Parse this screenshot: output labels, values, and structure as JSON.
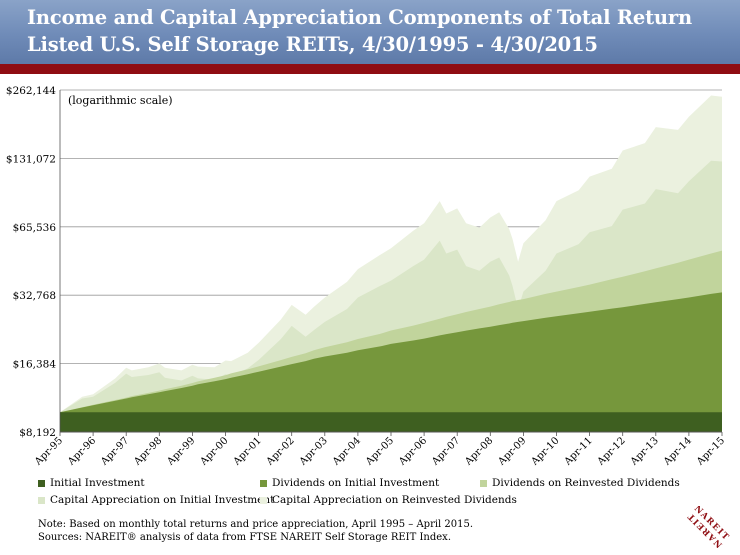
{
  "header": {
    "title_line1": "Income and Capital Appreciation Components of Total Return",
    "title_line2": "Listed U.S. Self Storage REITs, 4/30/1995 - 4/30/2015"
  },
  "colors": {
    "title_band": "#6f8bb8",
    "accent_bar": "#8f0d12",
    "initial_investment": "#3e5f20",
    "dividends_initial": "#76973c",
    "dividends_reinvested": "#c1d49c",
    "capital_initial": "#dae6c8",
    "capital_reinvested": "#ebf1df"
  },
  "chart_data": {
    "type": "area",
    "stacked": true,
    "y_scale": "log2",
    "annotation": "(logarithmic scale)",
    "ylim": [
      8192,
      262144
    ],
    "y_ticks": [
      8192,
      16384,
      32768,
      65536,
      131072,
      262144
    ],
    "y_tick_labels": [
      "$8,192",
      "$16,384",
      "$32,768",
      "$65,536",
      "$131,072",
      "$262,144"
    ],
    "x_ticks": [
      "Apr-95",
      "Apr-96",
      "Apr-97",
      "Apr-98",
      "Apr-99",
      "Apr-00",
      "Apr-01",
      "Apr-02",
      "Apr-03",
      "Apr-04",
      "Apr-05",
      "Apr-06",
      "Apr-07",
      "Apr-08",
      "Apr-09",
      "Apr-10",
      "Apr-11",
      "Apr-12",
      "Apr-13",
      "Apr-14",
      "Apr-15"
    ],
    "grid": "horizontal",
    "legend_position": "bottom",
    "x": [
      1995.33,
      1996.0,
      1996.33,
      1997.0,
      1997.33,
      1997.5,
      1998.0,
      1998.33,
      1998.5,
      1999.0,
      1999.33,
      1999.5,
      2000.0,
      2000.33,
      2000.5,
      2001.0,
      2001.33,
      2002.0,
      2002.33,
      2002.75,
      2003.0,
      2003.33,
      2004.0,
      2004.33,
      2005.0,
      2005.33,
      2006.0,
      2006.33,
      2006.8,
      2007.0,
      2007.33,
      2007.6,
      2008.0,
      2008.33,
      2008.6,
      2008.9,
      2009.0,
      2009.17,
      2009.33,
      2010.0,
      2010.33,
      2011.0,
      2011.33,
      2012.0,
      2012.33,
      2013.0,
      2013.33,
      2014.0,
      2014.33,
      2015.0,
      2015.33
    ],
    "series": [
      {
        "name": "Initial Investment",
        "values": [
          10000,
          10000,
          10000,
          10000,
          10000,
          10000,
          10000,
          10000,
          10000,
          10000,
          10000,
          10000,
          10000,
          10000,
          10000,
          10000,
          10000,
          10000,
          10000,
          10000,
          10000,
          10000,
          10000,
          10000,
          10000,
          10000,
          10000,
          10000,
          10000,
          10000,
          10000,
          10000,
          10000,
          10000,
          10000,
          10000,
          10000,
          10000,
          10000,
          10000,
          10000,
          10000,
          10000,
          10000,
          10000,
          10000,
          10000,
          10000,
          10000,
          10000,
          10000
        ]
      },
      {
        "name": "Dividends on Initial Investment",
        "values": [
          10000,
          10500,
          10750,
          11250,
          11500,
          11650,
          12000,
          12250,
          12400,
          12800,
          13100,
          13280,
          13700,
          14000,
          14200,
          14700,
          15100,
          15900,
          16300,
          16800,
          17200,
          17600,
          18300,
          18750,
          19500,
          20000,
          20700,
          21100,
          21800,
          22100,
          22500,
          22900,
          23400,
          23800,
          24200,
          24600,
          24800,
          25000,
          25200,
          26100,
          26500,
          27300,
          27700,
          28600,
          29000,
          30000,
          30500,
          31500,
          32000,
          33200,
          33700
        ]
      },
      {
        "name": "Dividends on Reinvested Dividends",
        "values": [
          10000,
          10520,
          10790,
          11330,
          11610,
          11790,
          12170,
          12460,
          12640,
          13100,
          13460,
          13680,
          14200,
          14570,
          14830,
          15450,
          15930,
          16980,
          17530,
          18210,
          18750,
          19320,
          20360,
          21030,
          22130,
          22920,
          24070,
          24750,
          25800,
          26300,
          27000,
          27650,
          28500,
          29200,
          29900,
          30600,
          30900,
          31200,
          31500,
          33200,
          34000,
          35600,
          36500,
          38500,
          39500,
          41800,
          43000,
          45500,
          47000,
          50000,
          51500
        ]
      },
      {
        "name": "Capital Appreciation on Initial Investment",
        "values": [
          10000,
          11500,
          11700,
          13500,
          14800,
          14300,
          14600,
          15000,
          14200,
          13800,
          14500,
          14100,
          13900,
          14700,
          14500,
          15600,
          17000,
          21000,
          24000,
          21500,
          23000,
          25000,
          28500,
          32000,
          36000,
          38000,
          44000,
          47000,
          57000,
          50000,
          52000,
          44000,
          42000,
          46000,
          48000,
          40000,
          36000,
          28500,
          34000,
          42000,
          50000,
          55000,
          62000,
          66000,
          78000,
          83000,
          96000,
          92000,
          104000,
          128000,
          127000
        ]
      },
      {
        "name": "Capital Appreciation on Reinvested Dividends",
        "values": [
          10000,
          11700,
          12000,
          14100,
          15700,
          15300,
          15800,
          16400,
          15700,
          15300,
          16200,
          15900,
          15800,
          16900,
          16800,
          18300,
          20200,
          25600,
          29700,
          26900,
          29100,
          32000,
          37500,
          42700,
          49300,
          52700,
          63000,
          68000,
          85000,
          75000,
          79000,
          68000,
          65000,
          72000,
          76000,
          64000,
          58000,
          46000,
          55500,
          70000,
          85000,
          95000,
          109000,
          118000,
          142000,
          153000,
          180000,
          175000,
          200000,
          248000,
          245000
        ]
      }
    ]
  },
  "legend": {
    "items": [
      {
        "label": "Initial Investment",
        "color": "#3e5f20"
      },
      {
        "label": "Dividends on Initial Investment",
        "color": "#76973c"
      },
      {
        "label": "Dividends on Reinvested Dividends",
        "color": "#c1d49c"
      },
      {
        "label": "Capital Appreciation on Initial Investment",
        "color": "#dae6c8"
      },
      {
        "label": "Capital Appreciation on Reinvested Dividends",
        "color": "#ebf1df"
      }
    ]
  },
  "notes": {
    "line1": "Note: Based on monthly total returns and price appreciation, April 1995 – April 2015.",
    "line2": "Sources: NAREIT® analysis of data from FTSE NAREIT Self Storage REIT Index."
  },
  "logo": {
    "text": "NAREIT"
  }
}
